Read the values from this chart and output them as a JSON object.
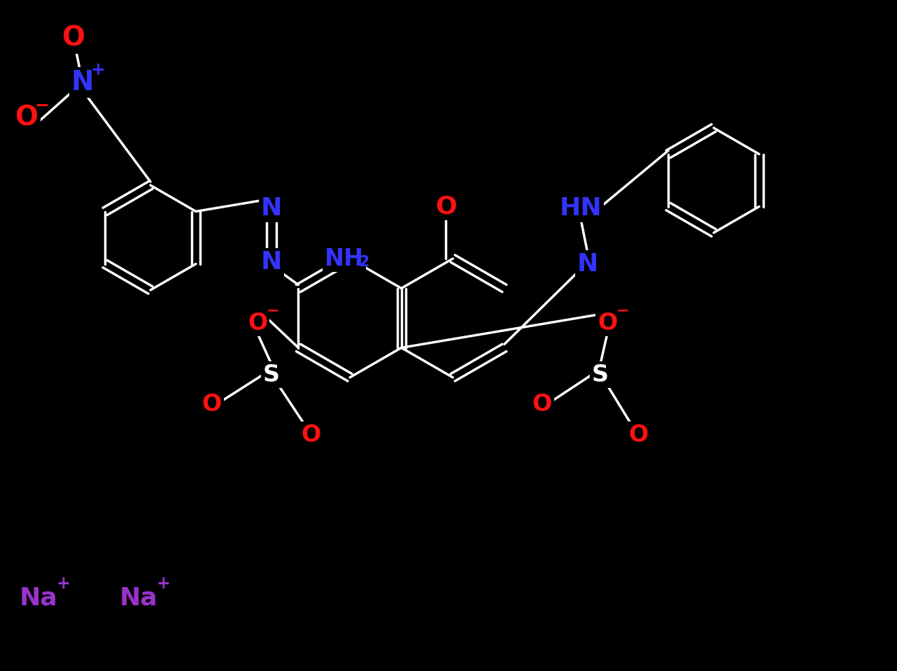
{
  "bg_color": "#000000",
  "bond_color": "#ffffff",
  "atom_colors": {
    "N": "#3333ff",
    "O": "#ff1111",
    "S": "#ffffff",
    "Na": "#9933cc",
    "default": "#ffffff"
  },
  "lw": 2.5
}
